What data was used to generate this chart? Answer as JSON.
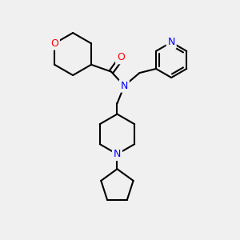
{
  "bg_color": "#f0f0f0",
  "bond_color": "#000000",
  "N_color": "#0000ff",
  "O_color": "#ff0000",
  "line_width": 1.5,
  "figsize": [
    3.0,
    3.0
  ],
  "dpi": 100,
  "xlim": [
    0,
    10
  ],
  "ylim": [
    0,
    10
  ]
}
